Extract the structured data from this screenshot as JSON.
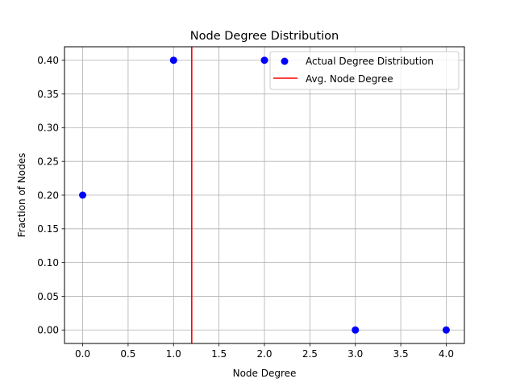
{
  "chart_data": {
    "type": "scatter",
    "title": "Node Degree Distribution",
    "xlabel": "Node Degree",
    "ylabel": "Fraction of Nodes",
    "xlim": [
      -0.2,
      4.2
    ],
    "ylim": [
      -0.02,
      0.42
    ],
    "xticks": [
      0.0,
      0.5,
      1.0,
      1.5,
      2.0,
      2.5,
      3.0,
      3.5,
      4.0
    ],
    "xtick_labels": [
      "0.0",
      "0.5",
      "1.0",
      "1.5",
      "2.0",
      "2.5",
      "3.0",
      "3.5",
      "4.0"
    ],
    "yticks": [
      0.0,
      0.05,
      0.1,
      0.15,
      0.2,
      0.25,
      0.3,
      0.35,
      0.4
    ],
    "ytick_labels": [
      "0.00",
      "0.05",
      "0.10",
      "0.15",
      "0.20",
      "0.25",
      "0.30",
      "0.35",
      "0.40"
    ],
    "grid": true,
    "legend_position": "top-right",
    "series": [
      {
        "name": "Actual Degree Distribution",
        "kind": "scatter",
        "color": "#0000ff",
        "x": [
          0,
          1,
          2,
          3,
          4
        ],
        "y": [
          0.2,
          0.4,
          0.4,
          0.0,
          0.0
        ]
      },
      {
        "name": "Avg. Node Degree",
        "kind": "vline",
        "color": "#ff0000",
        "x": 1.2
      }
    ]
  }
}
